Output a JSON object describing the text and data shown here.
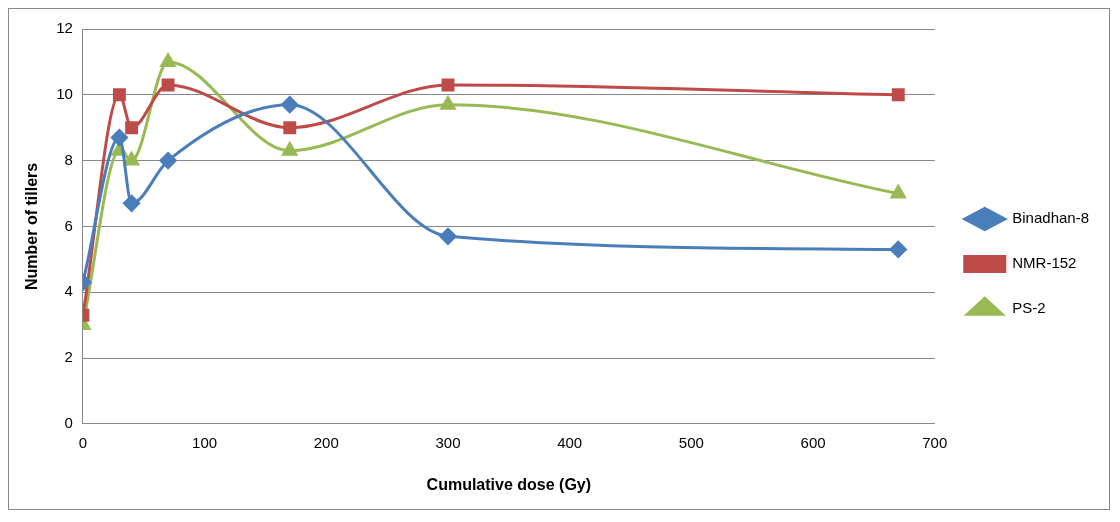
{
  "chart_data": {
    "type": "line",
    "xlabel": "Cumulative dose (Gy)",
    "ylabel": "Number of tillers",
    "xlim": [
      0,
      700
    ],
    "xticks": [
      0,
      100,
      200,
      300,
      400,
      500,
      600,
      700
    ],
    "ylim": [
      0,
      12
    ],
    "yticks": [
      0,
      2,
      4,
      6,
      8,
      10,
      12
    ],
    "grid": "y",
    "legend": "right",
    "x": [
      0,
      30,
      40,
      70,
      170,
      300,
      670
    ],
    "series": [
      {
        "name": "Binadhan-8",
        "color": "#4a7ebb",
        "marker": "diamond",
        "values": [
          4.3,
          8.7,
          6.7,
          8,
          9.7,
          5.7,
          5.3
        ]
      },
      {
        "name": "NMR-152",
        "color": "#be4b48",
        "marker": "square",
        "values": [
          3.3,
          10,
          9,
          10.3,
          9,
          10.3,
          10
        ]
      },
      {
        "name": "PS-2",
        "color": "#98b954",
        "marker": "triangle",
        "values": [
          3,
          8.3,
          8,
          11,
          8.3,
          9.7,
          7
        ]
      }
    ]
  }
}
